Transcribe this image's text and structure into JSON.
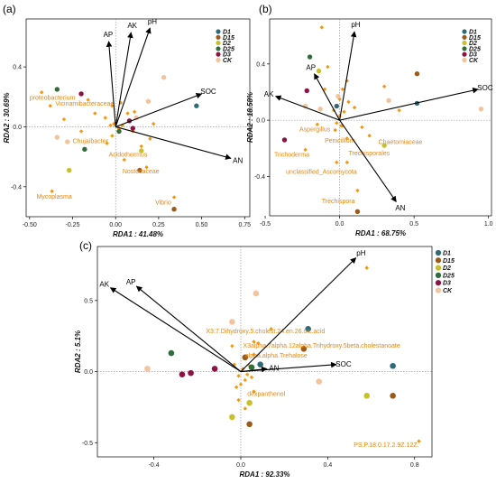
{
  "colors": {
    "D1": "#2f6a7a",
    "D15": "#9c5a18",
    "D2": "#c7c02a",
    "D25": "#2f6e3a",
    "D3": "#8e1144",
    "CK": "#f3c49b",
    "taxon": "#f5960c"
  },
  "chart_data": [
    {
      "panel": "(a)",
      "type": "scatter",
      "xlabel": "RDA1 : 41.48%",
      "ylabel": "RDA2 : 30.69%",
      "xlim": [
        -0.52,
        0.78
      ],
      "ylim": [
        -0.6,
        0.72
      ],
      "xticks": [
        -0.5,
        -0.25,
        0.0,
        0.25,
        0.5,
        0.75
      ],
      "xtick_labels": [
        "-0.50",
        "-0.25",
        "0.00",
        "0.25",
        "0.50",
        "0.75"
      ],
      "yticks": [
        -0.4,
        0.0,
        0.4
      ],
      "ytick_labels": [
        "-0.4",
        "0.0",
        "0.4"
      ],
      "legend": [
        "D1",
        "D15",
        "D2",
        "D25",
        "D3",
        "CK"
      ],
      "legend_position": "top-right",
      "vectors": [
        {
          "label": "AP",
          "x": -0.04,
          "y": 0.57
        },
        {
          "label": "AK",
          "x": 0.09,
          "y": 0.63
        },
        {
          "label": "pH",
          "x": 0.2,
          "y": 0.66
        },
        {
          "label": "SOC",
          "x": 0.5,
          "y": 0.22
        },
        {
          "label": "AN",
          "x": 0.67,
          "y": -0.21
        }
      ],
      "taxa": [
        {
          "label": "proteobacterium",
          "x": -0.43,
          "y": 0.23,
          "tx": -0.5,
          "ty": 0.18
        },
        {
          "label": "Vicinamibacteraceae",
          "x": -0.02,
          "y": 0.14,
          "tx": -0.35,
          "ty": 0.14
        },
        {
          "label": "Chujaibacter",
          "x": -0.02,
          "y": -0.06,
          "tx": -0.25,
          "ty": -0.11
        },
        {
          "label": "Acidothermus",
          "x": 0.05,
          "y": -0.22,
          "tx": -0.04,
          "ty": -0.2
        },
        {
          "label": "Nostocaceae",
          "x": 0.18,
          "y": -0.27,
          "tx": 0.04,
          "ty": -0.31
        },
        {
          "label": "Mycoplasma",
          "x": -0.37,
          "y": -0.43,
          "tx": -0.46,
          "ty": -0.48
        },
        {
          "label": "Vibrio",
          "x": 0.34,
          "y": -0.47,
          "tx": 0.23,
          "ty": -0.52
        }
      ],
      "extra_taxa": [
        [
          -0.38,
          0.14
        ],
        [
          -0.3,
          0.05
        ],
        [
          -0.16,
          0.18
        ],
        [
          -0.12,
          0.09
        ],
        [
          -0.06,
          0.06
        ],
        [
          0.03,
          0.16
        ],
        [
          0.07,
          0.09
        ],
        [
          0.1,
          -0.03
        ],
        [
          0.15,
          -0.13
        ],
        [
          0.2,
          -0.08
        ],
        [
          0.11,
          0.1
        ],
        [
          -0.2,
          -0.03
        ],
        [
          -0.05,
          -0.11
        ],
        [
          0.22,
          0.02
        ],
        [
          -0.01,
          0.02
        ],
        [
          0.02,
          -0.01
        ],
        [
          -0.03,
          0.01
        ],
        [
          0.04,
          0.01
        ]
      ],
      "points": [
        {
          "g": "D1",
          "x": 0.47,
          "y": 0.14
        },
        {
          "g": "D15",
          "x": 0.34,
          "y": -0.55
        },
        {
          "g": "D15",
          "x": 0.14,
          "y": -0.29
        },
        {
          "g": "D2",
          "x": -0.27,
          "y": -0.29
        },
        {
          "g": "D2",
          "x": 0.15,
          "y": -0.16
        },
        {
          "g": "D25",
          "x": -0.34,
          "y": 0.25
        },
        {
          "g": "D25",
          "x": -0.18,
          "y": -0.15
        },
        {
          "g": "D25",
          "x": 0.02,
          "y": -0.03
        },
        {
          "g": "D3",
          "x": -0.2,
          "y": 0.22
        },
        {
          "g": "D3",
          "x": 0.08,
          "y": 0.04
        },
        {
          "g": "D3",
          "x": 0.1,
          "y": -0.01
        },
        {
          "g": "CK",
          "x": 0.28,
          "y": 0.33
        },
        {
          "g": "CK",
          "x": 0.19,
          "y": 0.17
        },
        {
          "g": "CK",
          "x": -0.34,
          "y": -0.07
        },
        {
          "g": "CK",
          "x": -0.28,
          "y": -0.1
        },
        {
          "g": "CK",
          "x": 0.12,
          "y": 0.06
        }
      ]
    },
    {
      "panel": "(b)",
      "type": "scatter",
      "xlabel": "RDA1 : 68.75%",
      "ylabel": "RDA2 : 18.58%",
      "xlim": [
        -0.47,
        1.02
      ],
      "ylim": [
        -0.68,
        0.72
      ],
      "xticks": [
        -0.5,
        0.0,
        0.5,
        1.0
      ],
      "xtick_labels": [
        "-0.5",
        "0.0",
        "0.5",
        "1.0"
      ],
      "yticks": [
        -0.4,
        0.0,
        0.4
      ],
      "ytick_labels": [
        "-0.4",
        "0.0",
        "0.4"
      ],
      "legend": [
        "D1",
        "D15",
        "D2",
        "D25",
        "D3",
        "CK"
      ],
      "legend_position": "top-right",
      "vectors": [
        {
          "label": "pH",
          "x": 0.1,
          "y": 0.63
        },
        {
          "label": "AP",
          "x": -0.17,
          "y": 0.33
        },
        {
          "label": "AK",
          "x": -0.43,
          "y": 0.17
        },
        {
          "label": "SOC",
          "x": 0.93,
          "y": 0.22
        },
        {
          "label": "AN",
          "x": 0.38,
          "y": -0.58
        }
      ],
      "taxa": [
        {
          "label": "Aspergillus",
          "x": -0.03,
          "y": -0.07,
          "tx": -0.27,
          "ty": -0.08
        },
        {
          "label": "Penicillium",
          "x": 0.02,
          "y": -0.04,
          "tx": -0.1,
          "ty": -0.16
        },
        {
          "label": "Chaetomiaceae",
          "x": 0.2,
          "y": -0.11,
          "tx": 0.26,
          "ty": -0.17
        },
        {
          "label": "Trechisporales",
          "x": 0.05,
          "y": -0.13,
          "tx": 0.06,
          "ty": -0.25
        },
        {
          "label": "Trichoderma",
          "x": -0.23,
          "y": -0.21,
          "tx": -0.44,
          "ty": -0.26
        },
        {
          "label": "unclassified_Ascomycota",
          "x": -0.02,
          "y": -0.3,
          "tx": -0.36,
          "ty": -0.38
        },
        {
          "label": "Trechispora",
          "x": 0.12,
          "y": -0.5,
          "tx": -0.12,
          "ty": -0.59
        }
      ],
      "extra_taxa": [
        [
          -0.12,
          0.66
        ],
        [
          0.05,
          0.28
        ],
        [
          -0.08,
          0.38
        ],
        [
          0.02,
          0.22
        ],
        [
          0.0,
          0.15
        ],
        [
          -0.1,
          0.22
        ],
        [
          0.1,
          0.09
        ],
        [
          -0.04,
          0.07
        ],
        [
          0.03,
          0.06
        ],
        [
          0.0,
          0.03
        ],
        [
          -0.02,
          -0.02
        ],
        [
          0.01,
          -0.04
        ],
        [
          0.06,
          0.13
        ],
        [
          -0.15,
          -0.03
        ],
        [
          0.3,
          0.24
        ],
        [
          0.4,
          0.07
        ],
        [
          0.05,
          -0.3
        ],
        [
          0.15,
          -0.05
        ]
      ],
      "points": [
        {
          "g": "D1",
          "x": 0.52,
          "y": 0.12
        },
        {
          "g": "D1",
          "x": -0.02,
          "y": 0.1
        },
        {
          "g": "D15",
          "x": 0.52,
          "y": 0.33
        },
        {
          "g": "D15",
          "x": 0.12,
          "y": -0.65
        },
        {
          "g": "D2",
          "x": -0.14,
          "y": 0.35
        },
        {
          "g": "D2",
          "x": 0.3,
          "y": -0.18
        },
        {
          "g": "D25",
          "x": -0.2,
          "y": 0.45
        },
        {
          "g": "D3",
          "x": -0.22,
          "y": 0.21
        },
        {
          "g": "D3",
          "x": -0.37,
          "y": -0.14
        },
        {
          "g": "CK",
          "x": -0.23,
          "y": 0.1
        },
        {
          "g": "CK",
          "x": -0.13,
          "y": 0.08
        },
        {
          "g": "CK",
          "x": -0.01,
          "y": 0.17
        },
        {
          "g": "CK",
          "x": 0.33,
          "y": 0.14
        },
        {
          "g": "CK",
          "x": 0.95,
          "y": 0.08
        }
      ]
    },
    {
      "panel": "(c)",
      "type": "scatter",
      "xlabel": "RDA1 : 92.33%",
      "ylabel": "RDA2 : 5.1%",
      "xlim": [
        -0.66,
        0.88
      ],
      "ylim": [
        -0.6,
        0.88
      ],
      "xticks": [
        -0.4,
        0.0,
        0.4,
        0.8
      ],
      "xtick_labels": [
        "-0.4",
        "0.0",
        "0.4",
        "0.8"
      ],
      "yticks": [
        -0.5,
        0.0,
        0.5
      ],
      "ytick_labels": [
        "-0.5",
        "0.0",
        "0.5"
      ],
      "legend": [
        "D1",
        "D15",
        "D2",
        "D25",
        "D3",
        "CK"
      ],
      "legend_position": "top-right",
      "vectors": [
        {
          "label": "AK",
          "x": -0.6,
          "y": 0.59
        },
        {
          "label": "AP",
          "x": -0.48,
          "y": 0.6
        },
        {
          "label": "pH",
          "x": 0.53,
          "y": 0.8
        },
        {
          "label": "SOC",
          "x": 0.44,
          "y": 0.05
        },
        {
          "label": "AN",
          "x": 0.12,
          "y": 0.02
        }
      ],
      "taxa": [
        {
          "label": "X3.7.Dihydroxy.5.cholest.24.en.26.oic.acid",
          "x": 0.14,
          "y": 0.3,
          "tx": -0.16,
          "ty": 0.27
        },
        {
          "label": "X3alpha.7alpha.12alpha.Trihydroxy.5beta.cholestanoate",
          "x": 0.08,
          "y": 0.2,
          "tx": 0.01,
          "ty": 0.17
        },
        {
          "label": "alpha.alpha.Trehalose",
          "x": 0.06,
          "y": 0.12,
          "tx": 0.02,
          "ty": 0.1
        },
        {
          "label": "dexpanthenol",
          "x": 0.06,
          "y": -0.14,
          "tx": 0.03,
          "ty": -0.17
        },
        {
          "label": "PS.P.18.0.17.2.9Z.12Z.",
          "x": 0.82,
          "y": -0.49,
          "tx": 0.52,
          "ty": -0.53
        }
      ],
      "extra_taxa": [
        [
          0.58,
          0.73
        ],
        [
          -0.03,
          0.05
        ],
        [
          0.01,
          0.02
        ],
        [
          -0.01,
          -0.03
        ],
        [
          0.02,
          -0.06
        ],
        [
          0.0,
          -0.09
        ],
        [
          -0.02,
          -0.11
        ],
        [
          0.04,
          0.04
        ],
        [
          0.03,
          -0.02
        ],
        [
          -0.01,
          -0.2
        ],
        [
          0.02,
          -0.26
        ],
        [
          -0.04,
          0.18
        ],
        [
          0.06,
          0.21
        ],
        [
          0.05,
          -0.04
        ]
      ],
      "points": [
        {
          "g": "D1",
          "x": 0.31,
          "y": 0.3
        },
        {
          "g": "D1",
          "x": 0.09,
          "y": 0.05
        },
        {
          "g": "D1",
          "x": 0.7,
          "y": 0.04
        },
        {
          "g": "D15",
          "x": 0.29,
          "y": 0.16
        },
        {
          "g": "D15",
          "x": 0.02,
          "y": 0.1
        },
        {
          "g": "D15",
          "x": 0.7,
          "y": -0.17
        },
        {
          "g": "D15",
          "x": 0.04,
          "y": -0.37
        },
        {
          "g": "D2",
          "x": 0.58,
          "y": -0.17
        },
        {
          "g": "D2",
          "x": -0.04,
          "y": -0.32
        },
        {
          "g": "D2",
          "x": 0.04,
          "y": -0.22
        },
        {
          "g": "D25",
          "x": -0.32,
          "y": 0.13
        },
        {
          "g": "D25",
          "x": 0.05,
          "y": 0.03
        },
        {
          "g": "D3",
          "x": -0.27,
          "y": -0.02
        },
        {
          "g": "D3",
          "x": -0.23,
          "y": -0.01
        },
        {
          "g": "D3",
          "x": -0.12,
          "y": 0.02
        },
        {
          "g": "CK",
          "x": 0.07,
          "y": 0.55
        },
        {
          "g": "CK",
          "x": -0.04,
          "y": 0.35
        },
        {
          "g": "CK",
          "x": -0.43,
          "y": 0.02
        },
        {
          "g": "CK",
          "x": 0.36,
          "y": -0.07
        }
      ]
    }
  ]
}
